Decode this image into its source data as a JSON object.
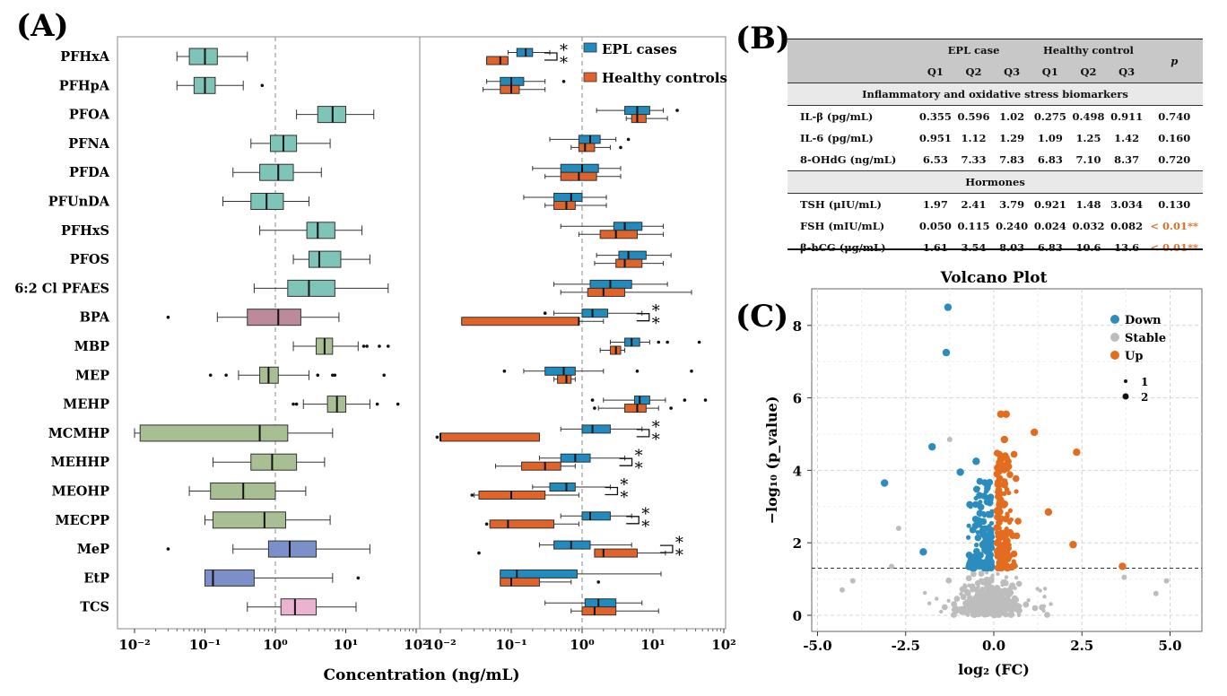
{
  "panels": {
    "a": "(A)",
    "b": "(B)",
    "c": "(C)"
  },
  "colors": {
    "epl": "#1f8bbf",
    "healthy": "#e0642a",
    "down": "#2b8cbe",
    "stable": "#bdbdbd",
    "up": "#e36c1e"
  },
  "panel_a": {
    "xlabel": "Concentration (ng/mL)",
    "legend": [
      "EPL cases",
      "Healthy controls"
    ],
    "chemicals": [
      "PFHxA",
      "PFHpA",
      "PFOA",
      "PFNA",
      "PFDA",
      "PFUnDA",
      "PFHxS",
      "PFOS",
      "6:2 Cl PFAES",
      "BPA",
      "MBP",
      "MEP",
      "MEHP",
      "MCMHP",
      "MEHHP",
      "MEOHP",
      "MECPP",
      "MeP",
      "EtP",
      "TCS"
    ],
    "tick_labels": [
      "10⁻²",
      "10⁻¹",
      "10⁰",
      "10¹",
      "10²"
    ]
  },
  "chart_data": [
    {
      "type": "box",
      "title": "",
      "xlabel": "Concentration (ng/mL)",
      "xscale": "log10",
      "xlim": [
        0.01,
        100
      ],
      "reference_line": 1,
      "categories": [
        "PFHxA",
        "PFHpA",
        "PFOA",
        "PFNA",
        "PFDA",
        "PFUnDA",
        "PFHxS",
        "PFOS",
        "6:2 Cl PFAES",
        "BPA",
        "MBP",
        "MEP",
        "MEHP",
        "MCMHP",
        "MEHHP",
        "MEOHP",
        "MECPP",
        "MeP",
        "EtP",
        "TCS"
      ],
      "box_colors": [
        "#7fc4b8",
        "#7fc4b8",
        "#7fc4b8",
        "#7fc4b8",
        "#7fc4b8",
        "#7fc4b8",
        "#7fc4b8",
        "#7fc4b8",
        "#7fc4b8",
        "#bd8a9c",
        "#a8bf94",
        "#a8bf94",
        "#a8bf94",
        "#a8bf94",
        "#a8bf94",
        "#a8bf94",
        "#a8bf94",
        "#7b8fc9",
        "#7b8fc9",
        "#eab3cf"
      ],
      "boxes": [
        {
          "wmin": 0.04,
          "q1": 0.06,
          "med": 0.1,
          "q3": 0.15,
          "wmax": 0.4,
          "outliers": []
        },
        {
          "wmin": 0.04,
          "q1": 0.07,
          "med": 0.1,
          "q3": 0.14,
          "wmax": 0.35,
          "outliers": [
            0.65
          ]
        },
        {
          "wmin": 2,
          "q1": 4,
          "med": 6.5,
          "q3": 10,
          "wmax": 25,
          "outliers": []
        },
        {
          "wmin": 0.45,
          "q1": 0.85,
          "med": 1.3,
          "q3": 2,
          "wmax": 6,
          "outliers": []
        },
        {
          "wmin": 0.25,
          "q1": 0.6,
          "med": 1.1,
          "q3": 1.8,
          "wmax": 4.5,
          "outliers": []
        },
        {
          "wmin": 0.18,
          "q1": 0.45,
          "med": 0.75,
          "q3": 1.3,
          "wmax": 3,
          "outliers": []
        },
        {
          "wmin": 0.6,
          "q1": 2.8,
          "med": 4,
          "q3": 7,
          "wmax": 17,
          "outliers": []
        },
        {
          "wmin": 1.8,
          "q1": 3,
          "med": 4.2,
          "q3": 8.5,
          "wmax": 22,
          "outliers": []
        },
        {
          "wmin": 0.5,
          "q1": 1.5,
          "med": 3,
          "q3": 7,
          "wmax": 40,
          "outliers": []
        },
        {
          "wmin": 0.15,
          "q1": 0.4,
          "med": 1.1,
          "q3": 2.3,
          "wmax": 8,
          "outliers": [
            0.03
          ]
        },
        {
          "wmin": 1.8,
          "q1": 3.8,
          "med": 5,
          "q3": 6.5,
          "wmax": 15,
          "outliers": [
            18,
            20,
            30,
            40
          ]
        },
        {
          "wmin": 0.3,
          "q1": 0.6,
          "med": 0.8,
          "q3": 1.1,
          "wmax": 3,
          "outliers": [
            0.12,
            0.2,
            4,
            6.5,
            7,
            35
          ]
        },
        {
          "wmin": 2.5,
          "q1": 5.5,
          "med": 7.5,
          "q3": 10,
          "wmax": 22,
          "outliers": [
            1.8,
            2,
            28,
            55
          ]
        },
        {
          "wmin": 0.01,
          "q1": 0.012,
          "med": 0.6,
          "q3": 1.5,
          "wmax": 6.5,
          "outliers": []
        },
        {
          "wmin": 0.13,
          "q1": 0.45,
          "med": 0.9,
          "q3": 2,
          "wmax": 5,
          "outliers": []
        },
        {
          "wmin": 0.06,
          "q1": 0.12,
          "med": 0.35,
          "q3": 1,
          "wmax": 2.7,
          "outliers": []
        },
        {
          "wmin": 0.1,
          "q1": 0.13,
          "med": 0.7,
          "q3": 1.4,
          "wmax": 6,
          "outliers": []
        },
        {
          "wmin": 0.25,
          "q1": 0.8,
          "med": 1.6,
          "q3": 3.8,
          "wmax": 22,
          "outliers": [
            0.03
          ]
        },
        {
          "wmin": 0.1,
          "q1": 0.1,
          "med": 0.13,
          "q3": 0.5,
          "wmax": 6.5,
          "outliers": [
            15
          ]
        },
        {
          "wmin": 0.4,
          "q1": 1.2,
          "med": 1.9,
          "q3": 3.8,
          "wmax": 14,
          "outliers": []
        }
      ]
    },
    {
      "type": "box",
      "xscale": "log10",
      "xlim": [
        0.01,
        100
      ],
      "reference_line": 1,
      "series": [
        {
          "name": "EPL cases",
          "color": "#1f8bbf",
          "boxes": [
            {
              "wmin": 0.09,
              "q1": 0.12,
              "med": 0.16,
              "q3": 0.2,
              "wmax": 0.35,
              "outliers": []
            },
            {
              "wmin": 0.045,
              "q1": 0.07,
              "med": 0.1,
              "q3": 0.15,
              "wmax": 0.3,
              "outliers": [
                0.55
              ]
            },
            {
              "wmin": 1.6,
              "q1": 4,
              "med": 6,
              "q3": 9,
              "wmax": 14,
              "outliers": [
                22
              ]
            },
            {
              "wmin": 0.35,
              "q1": 0.9,
              "med": 1.3,
              "q3": 1.8,
              "wmax": 3,
              "outliers": [
                4.5
              ]
            },
            {
              "wmin": 0.2,
              "q1": 0.5,
              "med": 1,
              "q3": 1.7,
              "wmax": 3.5,
              "outliers": []
            },
            {
              "wmin": 0.15,
              "q1": 0.4,
              "med": 0.7,
              "q3": 1,
              "wmax": 2.2,
              "outliers": []
            },
            {
              "wmin": 0.5,
              "q1": 2.8,
              "med": 4,
              "q3": 7,
              "wmax": 14,
              "outliers": []
            },
            {
              "wmin": 1.6,
              "q1": 3.3,
              "med": 4.5,
              "q3": 8,
              "wmax": 18,
              "outliers": []
            },
            {
              "wmin": 0.4,
              "q1": 1.3,
              "med": 2.5,
              "q3": 5,
              "wmax": 16,
              "outliers": []
            },
            {
              "wmin": 0.4,
              "q1": 1,
              "med": 1.4,
              "q3": 2.3,
              "wmax": 7,
              "outliers": [
                0.3
              ]
            },
            {
              "wmin": 2.5,
              "q1": 4,
              "med": 5,
              "q3": 6.5,
              "wmax": 9,
              "outliers": [
                12,
                16,
                45
              ]
            },
            {
              "wmin": 0.15,
              "q1": 0.3,
              "med": 0.55,
              "q3": 0.8,
              "wmax": 2,
              "outliers": [
                0.08,
                6,
                35
              ]
            },
            {
              "wmin": 2,
              "q1": 5.5,
              "med": 6.5,
              "q3": 9,
              "wmax": 15,
              "outliers": [
                1.4,
                28,
                55
              ]
            },
            {
              "wmin": 0.5,
              "q1": 1,
              "med": 1.4,
              "q3": 2.5,
              "wmax": 7,
              "outliers": []
            },
            {
              "wmin": 0.25,
              "q1": 0.5,
              "med": 0.8,
              "q3": 1.3,
              "wmax": 4,
              "outliers": []
            },
            {
              "wmin": 0.2,
              "q1": 0.35,
              "med": 0.6,
              "q3": 0.8,
              "wmax": 2.5,
              "outliers": []
            },
            {
              "wmin": 0.5,
              "q1": 1,
              "med": 1.3,
              "q3": 2.5,
              "wmax": 5,
              "outliers": []
            },
            {
              "wmin": 0.25,
              "q1": 0.4,
              "med": 0.7,
              "q3": 1.3,
              "wmax": 5,
              "outliers": []
            },
            {
              "wmin": 0.07,
              "q1": 0.07,
              "med": 0.12,
              "q3": 0.85,
              "wmax": 13,
              "outliers": []
            },
            {
              "wmin": 0.3,
              "q1": 1.1,
              "med": 1.7,
              "q3": 3,
              "wmax": 7,
              "outliers": []
            }
          ]
        },
        {
          "name": "Healthy controls",
          "color": "#e0642a",
          "boxes": [
            {
              "wmin": 0.045,
              "q1": 0.045,
              "med": 0.07,
              "q3": 0.09,
              "wmax": 0.09,
              "outliers": []
            },
            {
              "wmin": 0.04,
              "q1": 0.07,
              "med": 0.1,
              "q3": 0.13,
              "wmax": 0.3,
              "outliers": []
            },
            {
              "wmin": 4.2,
              "q1": 5,
              "med": 6,
              "q3": 8,
              "wmax": 16,
              "outliers": []
            },
            {
              "wmin": 0.7,
              "q1": 0.9,
              "med": 1.1,
              "q3": 1.5,
              "wmax": 2.5,
              "outliers": [
                3.5
              ]
            },
            {
              "wmin": 0.3,
              "q1": 0.5,
              "med": 0.9,
              "q3": 1.6,
              "wmax": 3.5,
              "outliers": []
            },
            {
              "wmin": 0.3,
              "q1": 0.4,
              "med": 0.6,
              "q3": 0.8,
              "wmax": 2.2,
              "outliers": []
            },
            {
              "wmin": 0.9,
              "q1": 1.8,
              "med": 3,
              "q3": 6,
              "wmax": 14,
              "outliers": []
            },
            {
              "wmin": 1.5,
              "q1": 3,
              "med": 4,
              "q3": 7,
              "wmax": 14,
              "outliers": []
            },
            {
              "wmin": 0.5,
              "q1": 1.2,
              "med": 2,
              "q3": 4,
              "wmax": 35,
              "outliers": []
            },
            {
              "wmin": 0.02,
              "q1": 0.02,
              "med": 0.9,
              "q3": 0.9,
              "wmax": 2,
              "outliers": []
            },
            {
              "wmin": 1.8,
              "q1": 2.5,
              "med": 3,
              "q3": 3.5,
              "wmax": 4,
              "outliers": []
            },
            {
              "wmin": 0.4,
              "q1": 0.45,
              "med": 0.6,
              "q3": 0.7,
              "wmax": 0.8,
              "outliers": []
            },
            {
              "wmin": 1.7,
              "q1": 4,
              "med": 6,
              "q3": 8,
              "wmax": 12,
              "outliers": [
                1.5,
                18
              ]
            },
            {
              "wmin": 0.01,
              "q1": 0.01,
              "med": 0.01,
              "q3": 0.25,
              "wmax": 0.25,
              "outliers": [
                0.009
              ]
            },
            {
              "wmin": 0.06,
              "q1": 0.14,
              "med": 0.3,
              "q3": 0.5,
              "wmax": 0.8,
              "outliers": []
            },
            {
              "wmin": 0.03,
              "q1": 0.035,
              "med": 0.1,
              "q3": 0.3,
              "wmax": 0.9,
              "outliers": [
                0.028
              ]
            },
            {
              "wmin": 0.05,
              "q1": 0.05,
              "med": 0.09,
              "q3": 0.4,
              "wmax": 0.9,
              "outliers": [
                0.045
              ]
            },
            {
              "wmin": 1.5,
              "q1": 1.5,
              "med": 2,
              "q3": 6,
              "wmax": 15,
              "outliers": [
                0.035
              ]
            },
            {
              "wmin": 0.07,
              "q1": 0.07,
              "med": 0.1,
              "q3": 0.25,
              "wmax": 0.7,
              "outliers": [
                1.7
              ]
            },
            {
              "wmin": 0.7,
              "q1": 1,
              "med": 1.5,
              "q3": 3,
              "wmax": 12,
              "outliers": []
            }
          ]
        }
      ],
      "significance_rows": [
        0,
        9,
        13,
        14,
        15,
        16,
        17
      ],
      "annotation": "**"
    },
    {
      "type": "table",
      "header_groups": [
        "EPL case",
        "Healthy control"
      ],
      "columns": [
        "Q1",
        "Q2",
        "Q3",
        "Q1",
        "Q2",
        "Q3",
        "p"
      ],
      "sections": [
        {
          "title": "Inflammatory and oxidative stress biomarkers",
          "rows": [
            {
              "label": "IL-β (pg/mL)",
              "values": [
                "0.355",
                "0.596",
                "1.02",
                "0.275",
                "0.498",
                "0.911",
                "0.740"
              ]
            },
            {
              "label": "IL-6 (pg/mL)",
              "values": [
                "0.951",
                "1.12",
                "1.29",
                "1.09",
                "1.25",
                "1.42",
                "0.160"
              ]
            },
            {
              "label": "8-OHdG (ng/mL)",
              "values": [
                "6.53",
                "7.33",
                "7.83",
                "6.83",
                "7.10",
                "8.37",
                "0.720"
              ]
            }
          ]
        },
        {
          "title": "Hormones",
          "rows": [
            {
              "label": "TSH (μIU/mL)",
              "values": [
                "1.97",
                "2.41",
                "3.79",
                "0.921",
                "1.48",
                "3.034",
                "0.130"
              ]
            },
            {
              "label": "FSH (mIU/mL)",
              "values": [
                "0.050",
                "0.115",
                "0.240",
                "0.024",
                "0.032",
                "0.082",
                "< 0.01**"
              ]
            },
            {
              "label": "β-hCG (μg/mL)",
              "values": [
                "1.61",
                "3.54",
                "8.03",
                "6.83",
                "10.6",
                "13.6",
                "< 0.01**"
              ]
            }
          ]
        }
      ]
    },
    {
      "type": "scatter",
      "title": "Volcano Plot",
      "xlabel": "log₂ (FC)",
      "ylabel": "−log₁₀ (p_value)",
      "xlim": [
        -5.6,
        5.6
      ],
      "ylim": [
        -0.3,
        8.8
      ],
      "xticks": [
        "-5.0",
        "-2.5",
        "0.0",
        "2.5",
        "5.0"
      ],
      "yticks": [
        "0",
        "2",
        "4",
        "6",
        "8"
      ],
      "threshold": 1.3,
      "legend": [
        "Down",
        "Stable",
        "Up"
      ],
      "size_legend": [
        "1",
        "2"
      ],
      "points": {
        "down_highlight": [
          [
            -1.3,
            8.5
          ],
          [
            -1.35,
            7.25
          ],
          [
            -1.75,
            4.65
          ],
          [
            -3.1,
            3.65
          ],
          [
            -0.5,
            4.25
          ],
          [
            -0.95,
            3.95
          ],
          [
            -2.0,
            1.75
          ]
        ],
        "up_highlight": [
          [
            0.2,
            5.55
          ],
          [
            0.35,
            5.55
          ],
          [
            1.15,
            5.05
          ],
          [
            2.35,
            4.5
          ],
          [
            0.3,
            4.85
          ],
          [
            2.25,
            1.95
          ],
          [
            1.55,
            2.85
          ],
          [
            3.65,
            1.35
          ]
        ],
        "stable_highlight": [
          [
            -2.7,
            2.4
          ],
          [
            -1.25,
            4.85
          ],
          [
            -4.3,
            0.7
          ],
          [
            -4.0,
            0.95
          ],
          [
            4.6,
            0.6
          ],
          [
            4.9,
            0.95
          ],
          [
            -2.9,
            1.35
          ],
          [
            3.7,
            1.05
          ]
        ]
      }
    }
  ]
}
